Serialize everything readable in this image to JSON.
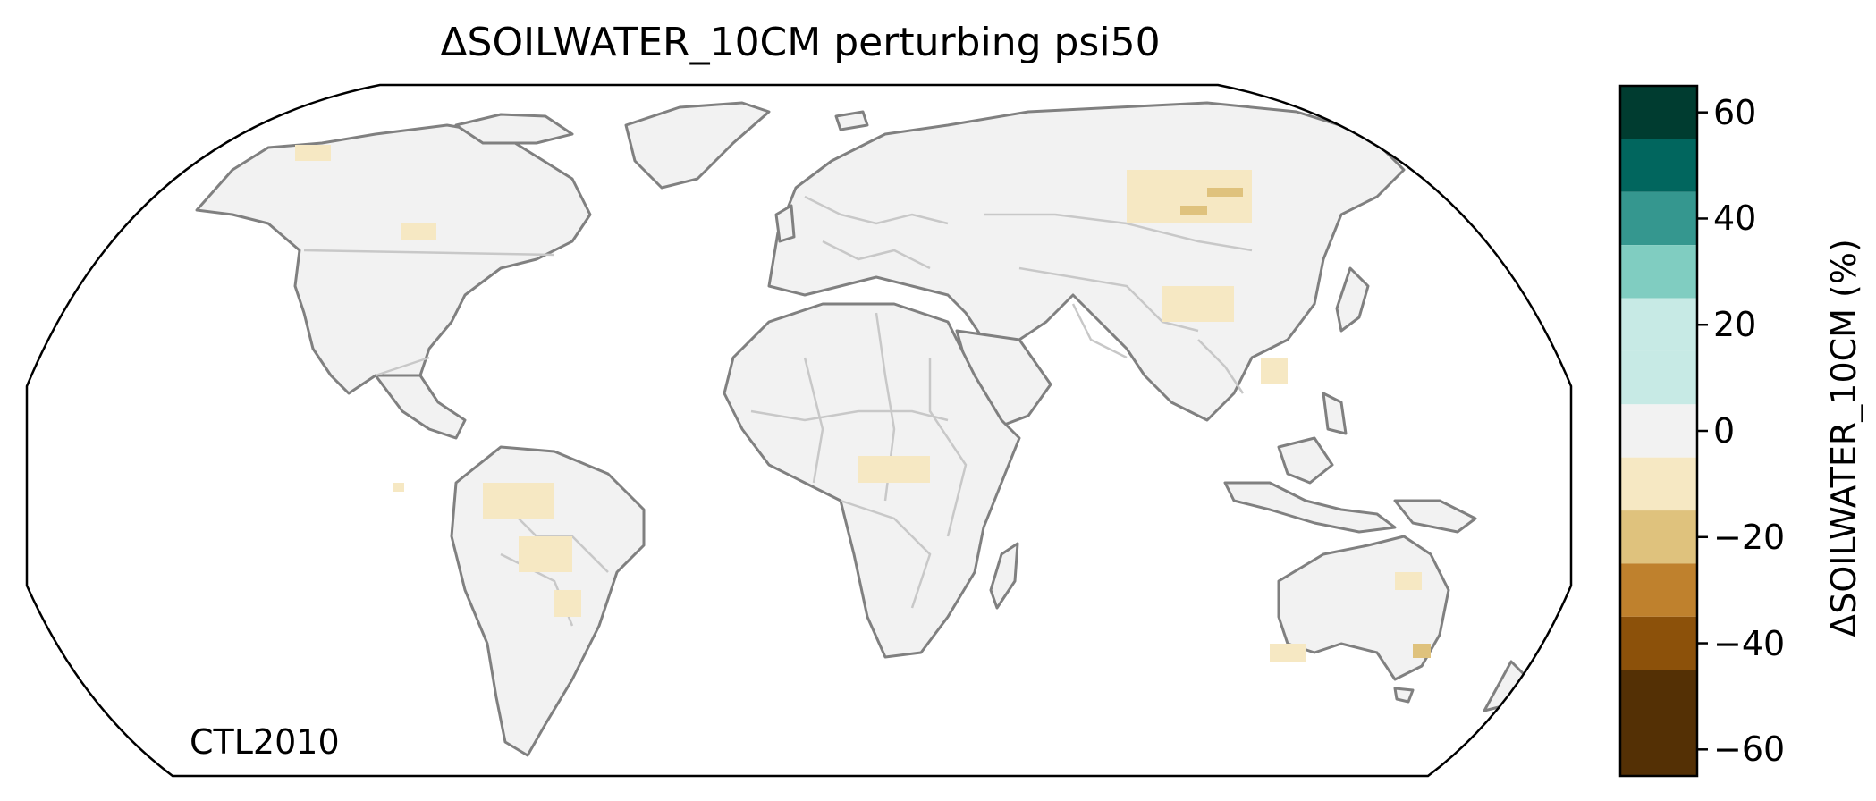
{
  "map": {
    "title": "ΔSOILWATER_10CM perturbing psi50",
    "corner_label": "CTL2010",
    "land_color": "#f2f2f2",
    "coast_color": "#808080",
    "border_color": "#c8c8c8",
    "projection": "Robinson"
  },
  "colorbar": {
    "label": "ΔSOILWATER_10CM (%)",
    "range": [
      -65,
      65
    ],
    "tick_values": [
      60,
      40,
      20,
      0,
      -20,
      -40,
      -60
    ],
    "tick_labels": [
      "60",
      "40",
      "20",
      "0",
      "−20",
      "−40",
      "−60"
    ],
    "bins": [
      {
        "min": 55,
        "max": 65,
        "color": "#003c30"
      },
      {
        "min": 45,
        "max": 55,
        "color": "#01665e"
      },
      {
        "min": 35,
        "max": 45,
        "color": "#35978f"
      },
      {
        "min": 25,
        "max": 35,
        "color": "#80cdc1"
      },
      {
        "min": 15,
        "max": 25,
        "color": "#c7eae5"
      },
      {
        "min": 5,
        "max": 15,
        "color": "#c7eae5"
      },
      {
        "min": -5,
        "max": 5,
        "color": "#f2f2f2"
      },
      {
        "min": -15,
        "max": -5,
        "color": "#f6e8c3"
      },
      {
        "min": -25,
        "max": -15,
        "color": "#dfc27d"
      },
      {
        "min": -35,
        "max": -25,
        "color": "#bf812d"
      },
      {
        "min": -45,
        "max": -35,
        "color": "#8c510a"
      },
      {
        "min": -65,
        "max": -45,
        "color": "#543005"
      }
    ]
  }
}
